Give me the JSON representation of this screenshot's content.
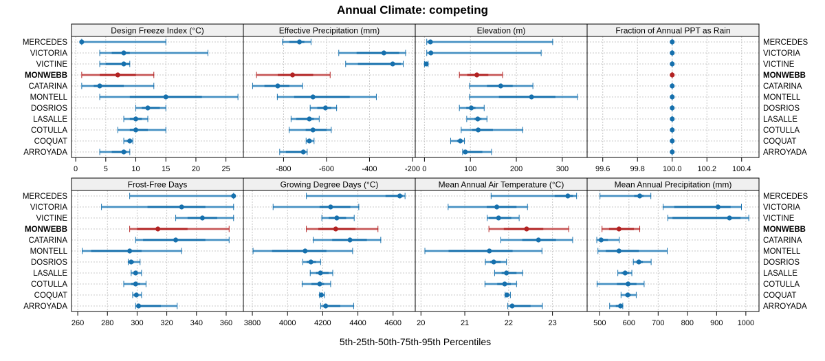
{
  "chart_data": {
    "type": "dotplot-percentile-intervals",
    "title": "Annual Climate: competing",
    "xlabel": "5th-25th-50th-75th-95th Percentiles",
    "legend": "none",
    "grid": true,
    "highlight_category": "MONWEBB",
    "colors": {
      "normal": "#1670ad",
      "normal_light": "#4a97c9",
      "highlight": "#b22222",
      "highlight_light": "#cc6060"
    },
    "categories": [
      "MERCEDES",
      "VICTORIA",
      "VICTINE",
      "MONWEBB",
      "CATARINA",
      "MONTELL",
      "DOSRIOS",
      "LASALLE",
      "COTULLA",
      "COQUAT",
      "ARROYADA"
    ],
    "percentile_order": [
      "p5",
      "p25",
      "p50",
      "p75",
      "p95"
    ],
    "panels": [
      {
        "title": "Design Freeze Index (°C)",
        "xlim": [
          -0.7,
          27.9
        ],
        "ticks": [
          0,
          5,
          10,
          15,
          20,
          25
        ],
        "tick_labels": [
          "0",
          "5",
          "10",
          "15",
          "20",
          "25"
        ],
        "values": [
          [
            1,
            1,
            1,
            1,
            15
          ],
          [
            4,
            6,
            8,
            9,
            22
          ],
          [
            4,
            5,
            8,
            9,
            9
          ],
          [
            1,
            4,
            7,
            10,
            13
          ],
          [
            1,
            3,
            4,
            8,
            13
          ],
          [
            4,
            9,
            15,
            21,
            27
          ],
          [
            10,
            11,
            12,
            14,
            15
          ],
          [
            8,
            9,
            10,
            11,
            12
          ],
          [
            7,
            9,
            10,
            12,
            15
          ],
          [
            8,
            8.5,
            9,
            9.3,
            9.5
          ],
          [
            4,
            6,
            8,
            8.5,
            9
          ]
        ]
      },
      {
        "title": "Effective Precipitation (mm)",
        "xlim": [
          -987,
          -187
        ],
        "ticks": [
          -800,
          -600,
          -400,
          -200
        ],
        "tick_labels": [
          "-800",
          "-600",
          "-400",
          "-200"
        ],
        "values": [
          [
            -805,
            -773,
            -726,
            -703,
            -672
          ],
          [
            -543,
            -460,
            -333,
            -262,
            -232
          ],
          [
            -511,
            -454,
            -292,
            -254,
            -243
          ],
          [
            -926,
            -827,
            -758,
            -662,
            -583
          ],
          [
            -944,
            -889,
            -827,
            -773,
            -711
          ],
          [
            -829,
            -751,
            -663,
            -492,
            -368
          ],
          [
            -676,
            -643,
            -605,
            -578,
            -553
          ],
          [
            -765,
            -741,
            -680,
            -659,
            -634
          ],
          [
            -774,
            -697,
            -663,
            -600,
            -578
          ],
          [
            -695,
            -690,
            -680,
            -670,
            -658
          ],
          [
            -818,
            -789,
            -708,
            -697,
            -690
          ]
        ]
      },
      {
        "title": "Elevation (m)",
        "xlim": [
          -20,
          354
        ],
        "ticks": [
          0,
          100,
          200,
          300
        ],
        "tick_labels": [
          "0",
          "100",
          "200",
          "300"
        ],
        "values": [
          [
            5,
            10,
            13,
            18,
            279
          ],
          [
            5,
            10,
            14,
            18,
            254
          ],
          [
            0,
            2,
            4,
            5,
            8
          ],
          [
            76,
            93,
            114,
            139,
            170
          ],
          [
            98,
            136,
            166,
            192,
            236
          ],
          [
            98,
            162,
            233,
            285,
            333
          ],
          [
            76,
            91,
            102,
            111,
            130
          ],
          [
            92,
            109,
            116,
            124,
            136
          ],
          [
            80,
            104,
            117,
            149,
            214
          ],
          [
            57,
            71,
            78,
            83,
            87
          ],
          [
            83,
            86,
            89,
            126,
            146
          ]
        ]
      },
      {
        "title": "Fraction of Annual PPT as Rain",
        "xlim": [
          99.51,
          100.5
        ],
        "ticks": [
          99.6,
          99.8,
          100.0,
          100.2,
          100.4
        ],
        "tick_labels": [
          "99.6",
          "99.8",
          "100.0",
          "100.2",
          "100.4"
        ],
        "values": [
          [
            100,
            100,
            100,
            100,
            100
          ],
          [
            100,
            100,
            100,
            100,
            100
          ],
          [
            100,
            100,
            100,
            100,
            100
          ],
          [
            100,
            100,
            100,
            100,
            100
          ],
          [
            100,
            100,
            100,
            100,
            100
          ],
          [
            100,
            100,
            100,
            100,
            100
          ],
          [
            100,
            100,
            100,
            100,
            100
          ],
          [
            100,
            100,
            100,
            100,
            100
          ],
          [
            100,
            100,
            100,
            100,
            100
          ],
          [
            100,
            100,
            100,
            100,
            100
          ],
          [
            100,
            100,
            100,
            100,
            100
          ]
        ]
      },
      {
        "title": "Frost-Free Days",
        "xlim": [
          255.8,
          371.6
        ],
        "ticks": [
          260,
          280,
          300,
          320,
          340,
          360
        ],
        "tick_labels": [
          "260",
          "280",
          "300",
          "320",
          "340",
          "360"
        ],
        "values": [
          [
            295,
            365,
            365,
            365,
            365
          ],
          [
            276,
            307,
            330,
            346,
            365
          ],
          [
            326,
            334,
            344,
            354,
            365
          ],
          [
            295,
            300,
            314,
            334,
            362
          ],
          [
            299,
            304,
            326,
            346,
            362
          ],
          [
            263,
            269,
            295,
            303,
            330
          ],
          [
            294,
            295,
            296,
            298,
            302
          ],
          [
            296,
            298,
            299,
            300,
            303
          ],
          [
            291,
            296,
            299,
            302,
            306
          ],
          [
            297,
            299,
            299.5,
            300,
            303
          ],
          [
            299,
            300,
            301,
            316,
            327
          ]
        ]
      },
      {
        "title": "Growing Degree Days (°C)",
        "xlim": [
          3749,
          4726
        ],
        "ticks": [
          3800,
          4000,
          4200,
          4400,
          4600
        ],
        "tick_labels": [
          "3800",
          "4000",
          "4200",
          "4400",
          "4600"
        ],
        "values": [
          [
            4107,
            4557,
            4638,
            4655,
            4668
          ],
          [
            3918,
            4182,
            4245,
            4357,
            4405
          ],
          [
            4195,
            4234,
            4280,
            4333,
            4379
          ],
          [
            4107,
            4175,
            4274,
            4386,
            4514
          ],
          [
            4146,
            4254,
            4355,
            4451,
            4530
          ],
          [
            3804,
            3912,
            4100,
            4221,
            4370
          ],
          [
            4087,
            4109,
            4133,
            4162,
            4188
          ],
          [
            4129,
            4162,
            4187,
            4234,
            4257
          ],
          [
            4083,
            4136,
            4183,
            4208,
            4245
          ],
          [
            4182,
            4186,
            4192,
            4201,
            4211
          ],
          [
            4188,
            4201,
            4217,
            4300,
            4376
          ]
        ]
      },
      {
        "title": "Mean Annual Air Temperature (°C)",
        "xlim": [
          19.87,
          23.79
        ],
        "ticks": [
          20,
          21,
          22,
          23
        ],
        "tick_labels": [
          "20",
          "21",
          "22",
          "23"
        ],
        "values": [
          [
            21.6,
            23.05,
            23.35,
            23.47,
            23.55
          ],
          [
            20.62,
            21.5,
            21.73,
            22.18,
            22.43
          ],
          [
            21.51,
            21.55,
            21.77,
            22.06,
            22.24
          ],
          [
            21.55,
            21.89,
            22.41,
            22.79,
            23.37
          ],
          [
            21.82,
            22.31,
            22.68,
            23.08,
            23.46
          ],
          [
            20.09,
            20.63,
            21.56,
            22.09,
            22.76
          ],
          [
            21.47,
            21.58,
            21.66,
            21.82,
            21.95
          ],
          [
            21.68,
            21.84,
            21.95,
            22.18,
            22.32
          ],
          [
            21.46,
            21.74,
            21.91,
            22.05,
            22.18
          ],
          [
            21.92,
            21.95,
            21.96,
            22.0,
            22.04
          ],
          [
            21.98,
            22.03,
            22.08,
            22.5,
            22.77
          ]
        ]
      },
      {
        "title": "Mean Annual Precipitation (mm)",
        "xlim": [
          457,
          1045
        ],
        "ticks": [
          500,
          600,
          700,
          800,
          900,
          1000
        ],
        "tick_labels": [
          "500",
          "600",
          "700",
          "800",
          "900",
          "1000"
        ],
        "values": [
          [
            501,
            618,
            637,
            650,
            675
          ],
          [
            717,
            755,
            905,
            948,
            985
          ],
          [
            733,
            749,
            944,
            982,
            1010
          ],
          [
            508,
            532,
            566,
            617,
            637
          ],
          [
            490,
            496,
            505,
            528,
            567
          ],
          [
            494,
            521,
            566,
            634,
            731
          ],
          [
            615,
            625,
            634,
            648,
            676
          ],
          [
            562,
            575,
            587,
            601,
            610
          ],
          [
            491,
            559,
            597,
            626,
            652
          ],
          [
            573,
            587,
            596,
            607,
            625
          ],
          [
            534,
            555,
            571,
            575,
            579
          ]
        ]
      }
    ]
  }
}
